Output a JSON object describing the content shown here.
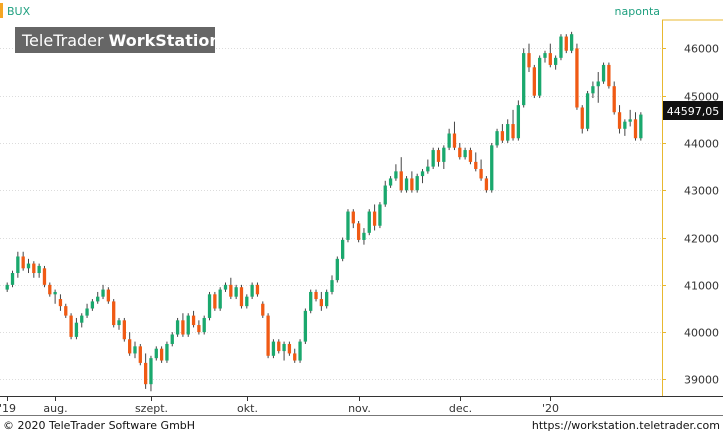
{
  "header": {
    "symbol": "BUX",
    "interval": "naponta",
    "watermark_a": "TeleTrader ",
    "watermark_b": "WorkStation"
  },
  "footer": {
    "copyright": "© 2020 TeleTrader Software GmbH",
    "url": "https://workstation.teletrader.com"
  },
  "last_price": "44597,05",
  "colors": {
    "up": "#1aa86d",
    "down": "#f05a14",
    "axis": "#e8b830",
    "marker": "#f5a623",
    "symbol": "#20a080",
    "grid": "#dcdcdc"
  },
  "chart_data": {
    "type": "candlestick",
    "y_ticks": [
      39000,
      40000,
      41000,
      42000,
      43000,
      44000,
      45000,
      46000
    ],
    "y_tick_labels": [
      "39000",
      "40000",
      "41000",
      "42000",
      "43000",
      "44000",
      "45000",
      "46000"
    ],
    "ylim": [
      38650,
      46600
    ],
    "x_labels": [
      {
        "label": "'19",
        "index": 0
      },
      {
        "label": "aug.",
        "index": 9
      },
      {
        "label": "szept.",
        "index": 27
      },
      {
        "label": "okt.",
        "index": 45
      },
      {
        "label": "nov.",
        "index": 66
      },
      {
        "label": "dec.",
        "index": 85
      },
      {
        "label": "'20",
        "index": 102
      }
    ],
    "x_range": [
      -0.6,
      122.6
    ],
    "candles": [
      [
        40900,
        41050,
        40850,
        41000
      ],
      [
        41000,
        41300,
        40950,
        41250
      ],
      [
        41250,
        41700,
        41150,
        41600
      ],
      [
        41600,
        41700,
        41300,
        41350
      ],
      [
        41350,
        41550,
        41250,
        41450
      ],
      [
        41450,
        41500,
        41150,
        41250
      ],
      [
        41250,
        41450,
        41150,
        41400
      ],
      [
        41350,
        41400,
        40950,
        41000
      ],
      [
        41000,
        41050,
        40750,
        40800
      ],
      [
        40800,
        40900,
        40600,
        40850
      ],
      [
        40700,
        40800,
        40450,
        40550
      ],
      [
        40550,
        40600,
        40300,
        40350
      ],
      [
        40350,
        40400,
        39850,
        39900
      ],
      [
        39900,
        40300,
        39850,
        40200
      ],
      [
        40200,
        40400,
        40100,
        40350
      ],
      [
        40350,
        40600,
        40300,
        40500
      ],
      [
        40500,
        40700,
        40450,
        40650
      ],
      [
        40650,
        40850,
        40600,
        40750
      ],
      [
        40750,
        41000,
        40700,
        40900
      ],
      [
        40900,
        40950,
        40600,
        40650
      ],
      [
        40650,
        40700,
        40100,
        40150
      ],
      [
        40150,
        40300,
        40050,
        40250
      ],
      [
        40250,
        40300,
        39800,
        39850
      ],
      [
        39850,
        40000,
        39500,
        39550
      ],
      [
        39550,
        39800,
        39450,
        39700
      ],
      [
        39700,
        39750,
        39300,
        39350
      ],
      [
        39350,
        39550,
        38800,
        38900
      ],
      [
        38900,
        39500,
        38750,
        39450
      ],
      [
        39450,
        39700,
        39400,
        39650
      ],
      [
        39650,
        39700,
        39350,
        39400
      ],
      [
        39400,
        39800,
        39350,
        39750
      ],
      [
        39750,
        40000,
        39700,
        39950
      ],
      [
        39950,
        40300,
        39900,
        40250
      ],
      [
        40250,
        40400,
        39900,
        39950
      ],
      [
        39950,
        40400,
        39900,
        40350
      ],
      [
        40350,
        40450,
        40100,
        40150
      ],
      [
        40150,
        40250,
        39950,
        40000
      ],
      [
        40000,
        40350,
        39950,
        40300
      ],
      [
        40300,
        40850,
        40250,
        40800
      ],
      [
        40800,
        40850,
        40450,
        40500
      ],
      [
        40500,
        40950,
        40450,
        40900
      ],
      [
        40900,
        41050,
        40850,
        41000
      ],
      [
        41000,
        41150,
        40700,
        40750
      ],
      [
        40750,
        41000,
        40700,
        40950
      ],
      [
        40950,
        41000,
        40500,
        40550
      ],
      [
        40550,
        40800,
        40500,
        40750
      ],
      [
        40750,
        41050,
        40700,
        41000
      ],
      [
        41000,
        41050,
        40750,
        40800
      ],
      [
        40600,
        40650,
        40300,
        40350
      ],
      [
        40350,
        40400,
        39450,
        39500
      ],
      [
        39500,
        39850,
        39450,
        39800
      ],
      [
        39800,
        39850,
        39550,
        39600
      ],
      [
        39600,
        39800,
        39400,
        39750
      ],
      [
        39750,
        39800,
        39500,
        39550
      ],
      [
        39550,
        39650,
        39350,
        39400
      ],
      [
        39400,
        39850,
        39350,
        39800
      ],
      [
        39800,
        40500,
        39750,
        40450
      ],
      [
        40450,
        40900,
        40400,
        40850
      ],
      [
        40850,
        40900,
        40650,
        40700
      ],
      [
        40700,
        40850,
        40450,
        40550
      ],
      [
        40550,
        40900,
        40500,
        40850
      ],
      [
        40850,
        41200,
        40800,
        41100
      ],
      [
        41100,
        41600,
        41050,
        41550
      ],
      [
        41550,
        42000,
        41500,
        41950
      ],
      [
        41950,
        42600,
        41900,
        42550
      ],
      [
        42550,
        42600,
        42200,
        42300
      ],
      [
        42300,
        42350,
        41900,
        41950
      ],
      [
        41950,
        42200,
        41850,
        42100
      ],
      [
        42100,
        42600,
        42050,
        42550
      ],
      [
        42550,
        42700,
        42150,
        42250
      ],
      [
        42250,
        42750,
        42200,
        42700
      ],
      [
        42700,
        43200,
        42650,
        43100
      ],
      [
        43100,
        43300,
        43050,
        43250
      ],
      [
        43250,
        43550,
        43200,
        43400
      ],
      [
        43400,
        43700,
        42950,
        43000
      ],
      [
        43000,
        43300,
        42950,
        43250
      ],
      [
        43250,
        43400,
        42950,
        43000
      ],
      [
        43000,
        43350,
        42950,
        43300
      ],
      [
        43300,
        43450,
        43150,
        43400
      ],
      [
        43400,
        43650,
        43350,
        43500
      ],
      [
        43500,
        43900,
        43450,
        43850
      ],
      [
        43850,
        43900,
        43500,
        43600
      ],
      [
        43600,
        43950,
        43450,
        43900
      ],
      [
        43900,
        44300,
        43850,
        44200
      ],
      [
        44200,
        44450,
        43850,
        43900
      ],
      [
        43900,
        44000,
        43650,
        43700
      ],
      [
        43700,
        43900,
        43650,
        43850
      ],
      [
        43850,
        43900,
        43550,
        43600
      ],
      [
        43600,
        43800,
        43400,
        43450
      ],
      [
        43450,
        43650,
        43200,
        43250
      ],
      [
        43250,
        43300,
        42950,
        43000
      ],
      [
        43000,
        44000,
        42950,
        43950
      ],
      [
        43950,
        44300,
        43900,
        44250
      ],
      [
        44250,
        44400,
        44000,
        44050
      ],
      [
        44050,
        44500,
        44000,
        44400
      ],
      [
        44400,
        44700,
        44050,
        44100
      ],
      [
        44100,
        44900,
        44050,
        44800
      ],
      [
        44800,
        46000,
        44750,
        45900
      ],
      [
        45900,
        46100,
        45500,
        45600
      ],
      [
        45600,
        45650,
        44950,
        45000
      ],
      [
        45000,
        45850,
        44950,
        45800
      ],
      [
        45800,
        45950,
        45700,
        45900
      ],
      [
        45900,
        46100,
        45600,
        45650
      ],
      [
        45650,
        45850,
        45550,
        45800
      ],
      [
        45800,
        46300,
        45750,
        46250
      ],
      [
        46250,
        46300,
        45900,
        45950
      ],
      [
        45950,
        46350,
        45900,
        46300
      ],
      [
        46000,
        46100,
        44700,
        44750
      ],
      [
        44750,
        44800,
        44200,
        44300
      ],
      [
        44300,
        45100,
        44250,
        45050
      ],
      [
        45050,
        45300,
        44950,
        45200
      ],
      [
        45200,
        45500,
        44850,
        45300
      ],
      [
        45300,
        45700,
        45250,
        45650
      ],
      [
        45650,
        45700,
        45150,
        45200
      ],
      [
        45200,
        45300,
        44600,
        44650
      ],
      [
        44650,
        44800,
        44200,
        44300
      ],
      [
        44300,
        44500,
        44150,
        44450
      ],
      [
        44450,
        44700,
        44350,
        44500
      ],
      [
        44500,
        44650,
        44050,
        44100
      ],
      [
        44100,
        44650,
        44050,
        44600
      ]
    ]
  }
}
